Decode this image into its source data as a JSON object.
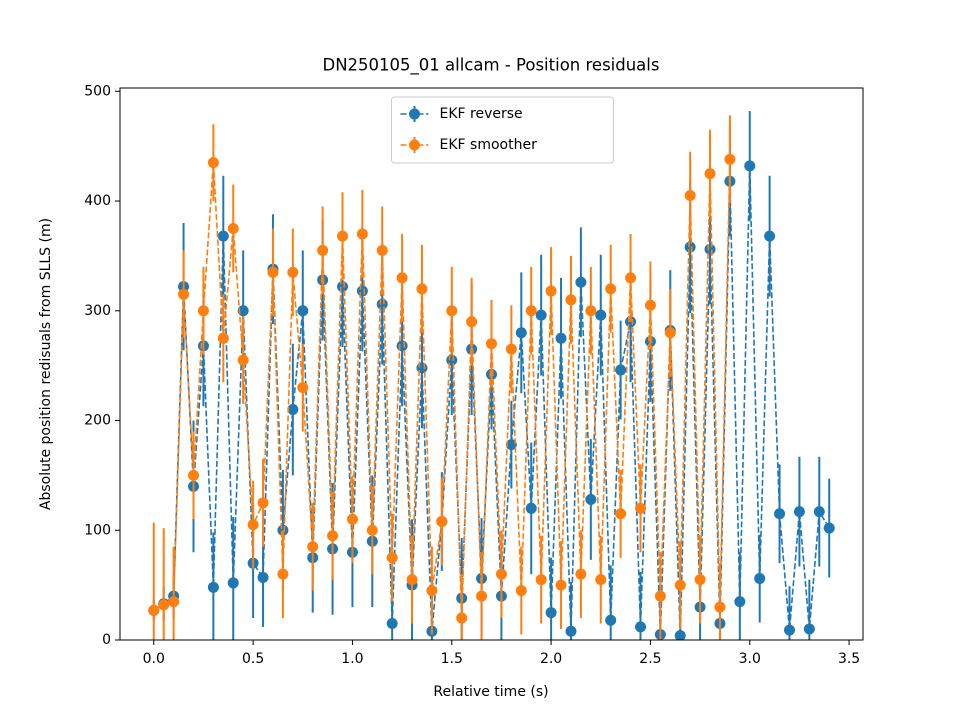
{
  "chart_data": {
    "type": "errorbar",
    "title": "DN250105_01 allcam - Position residuals",
    "xlabel": "Relative time (s)",
    "ylabel": "Absolute position redisuals from SLLS (m)",
    "xlim": [
      -0.17,
      3.57
    ],
    "ylim": [
      0,
      503
    ],
    "xticks": [
      {
        "value": 0,
        "label": "0.0"
      },
      0.5,
      {
        "value": 1,
        "label": "1.0"
      },
      1.5,
      {
        "value": 2,
        "label": "2.0"
      },
      2.5,
      {
        "value": 3,
        "label": "3.0"
      },
      3.5
    ],
    "yticks": [
      0,
      100,
      200,
      300,
      400,
      500
    ],
    "legend": "upper center",
    "series": [
      {
        "name": "EKF reverse",
        "color": "#1f77b4",
        "x": [
          0,
          0.05,
          0.1,
          0.15,
          0.2,
          0.25,
          0.3,
          0.35,
          0.4,
          0.45,
          0.5,
          0.55,
          0.6,
          0.65,
          0.7,
          0.75,
          0.8,
          0.85,
          0.9,
          0.95,
          1,
          1.05,
          1.1,
          1.15,
          1.2,
          1.25,
          1.3,
          1.35,
          1.4,
          1.45,
          1.5,
          1.55,
          1.6,
          1.65,
          1.7,
          1.75,
          1.8,
          1.85,
          1.9,
          1.95,
          2,
          2.05,
          2.1,
          2.15,
          2.2,
          2.25,
          2.3,
          2.35,
          2.4,
          2.45,
          2.5,
          2.55,
          2.6,
          2.65,
          2.7,
          2.75,
          2.8,
          2.85,
          2.9,
          2.95,
          3,
          3.05,
          3.1,
          3.15,
          3.2,
          3.25,
          3.3,
          3.35,
          3.4
        ],
        "values": [
          27,
          33,
          40,
          322,
          140,
          268,
          48,
          368,
          52,
          300,
          70,
          57,
          338,
          100,
          210,
          300,
          75,
          328,
          83,
          322,
          80,
          318,
          90,
          306,
          15,
          268,
          50,
          248,
          8,
          108,
          255,
          38,
          265,
          56,
          242,
          40,
          178,
          280,
          120,
          296,
          25,
          275,
          8,
          326,
          128,
          296,
          18,
          246,
          290,
          12,
          272,
          5,
          282,
          4,
          358,
          30,
          356,
          15,
          418,
          35,
          432,
          56,
          368,
          115,
          9,
          117,
          10,
          117,
          102
        ],
        "errors": [
          10,
          15,
          20,
          58,
          60,
          55,
          50,
          55,
          60,
          55,
          50,
          45,
          50,
          55,
          60,
          55,
          50,
          55,
          60,
          55,
          50,
          55,
          60,
          55,
          50,
          55,
          60,
          55,
          50,
          45,
          50,
          55,
          60,
          55,
          50,
          45,
          40,
          55,
          60,
          55,
          50,
          55,
          45,
          50,
          55,
          55,
          50,
          45,
          55,
          50,
          55,
          45,
          55,
          45,
          60,
          55,
          50,
          45,
          50,
          45,
          50,
          40,
          55,
          45,
          40,
          50,
          45,
          50,
          45
        ]
      },
      {
        "name": "EKF smoother",
        "color": "#ff7f0e",
        "x": [
          0,
          0.05,
          0.1,
          0.15,
          0.2,
          0.25,
          0.3,
          0.35,
          0.4,
          0.45,
          0.5,
          0.55,
          0.6,
          0.65,
          0.7,
          0.75,
          0.8,
          0.85,
          0.9,
          0.95,
          1,
          1.05,
          1.1,
          1.15,
          1.2,
          1.25,
          1.3,
          1.35,
          1.4,
          1.45,
          1.5,
          1.55,
          1.6,
          1.65,
          1.7,
          1.75,
          1.8,
          1.85,
          1.9,
          1.95,
          2,
          2.05,
          2.1,
          2.15,
          2.2,
          2.25,
          2.3,
          2.35,
          2.4,
          2.45,
          2.5,
          2.55,
          2.6,
          2.65,
          2.7,
          2.75,
          2.8,
          2.85,
          2.9
        ],
        "values": [
          27,
          32,
          35,
          315,
          150,
          300,
          435,
          275,
          375,
          255,
          105,
          125,
          335,
          60,
          335,
          230,
          85,
          355,
          95,
          368,
          110,
          370,
          100,
          355,
          75,
          330,
          55,
          320,
          45,
          108,
          300,
          20,
          290,
          40,
          270,
          60,
          265,
          45,
          300,
          55,
          318,
          50,
          310,
          60,
          300,
          55,
          320,
          115,
          330,
          120,
          305,
          40,
          280,
          50,
          405,
          55,
          425,
          30,
          438
        ],
        "errors": [
          80,
          70,
          50,
          40,
          40,
          40,
          35,
          40,
          40,
          40,
          40,
          40,
          40,
          40,
          40,
          40,
          40,
          40,
          40,
          40,
          40,
          40,
          40,
          40,
          40,
          40,
          40,
          40,
          40,
          40,
          40,
          40,
          40,
          40,
          40,
          40,
          40,
          40,
          40,
          40,
          40,
          40,
          40,
          40,
          40,
          40,
          40,
          40,
          40,
          40,
          40,
          40,
          40,
          40,
          40,
          40,
          40,
          40,
          40
        ]
      }
    ]
  }
}
